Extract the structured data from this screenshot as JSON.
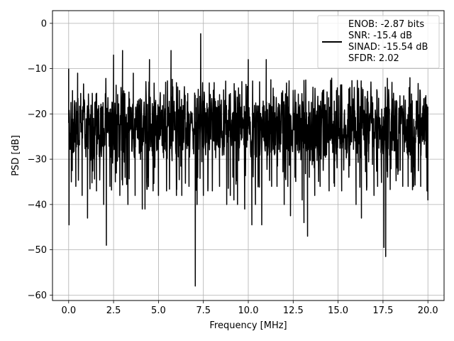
{
  "chart_data": {
    "type": "line",
    "xlabel": "Frequency [MHz]",
    "ylabel": "PSD [dB]",
    "xlim": [
      -0.9,
      20.9
    ],
    "ylim": [
      -61.2,
      2.8
    ],
    "x_ticks": [
      0,
      2.5,
      5,
      7.5,
      10,
      12.5,
      15,
      17.5,
      20
    ],
    "x_tick_labels": [
      "0.0",
      "2.5",
      "5.0",
      "7.5",
      "10.0",
      "12.5",
      "15.0",
      "17.5",
      "20.0"
    ],
    "y_ticks": [
      0,
      -10,
      -20,
      -30,
      -40,
      -50,
      -60
    ],
    "y_tick_labels": [
      "0",
      "−10",
      "−20",
      "−30",
      "−40",
      "−50",
      "−60"
    ],
    "grid": true,
    "legend_placement": "top-right",
    "line_color": "#000000",
    "series": [
      {
        "legend_lines": [
          "ENOB: -2.87 bits",
          "SNR: -15.4 dB",
          "SINAD: -15.54 dB",
          "SFDR: 2.02"
        ],
        "x_range": [
          0,
          20
        ],
        "baseline_db": -23,
        "noise_spread_db": 6,
        "peaks": [
          {
            "x": 0.0,
            "y": -10
          },
          {
            "x": 0.02,
            "y": -44.5
          },
          {
            "x": 0.15,
            "y": -35
          },
          {
            "x": 0.4,
            "y": -36
          },
          {
            "x": 0.5,
            "y": -11
          },
          {
            "x": 0.75,
            "y": -38
          },
          {
            "x": 1.05,
            "y": -43
          },
          {
            "x": 1.3,
            "y": -32
          },
          {
            "x": 1.55,
            "y": -37
          },
          {
            "x": 1.95,
            "y": -40
          },
          {
            "x": 2.1,
            "y": -49
          },
          {
            "x": 2.3,
            "y": -36
          },
          {
            "x": 2.5,
            "y": -7
          },
          {
            "x": 2.6,
            "y": -35
          },
          {
            "x": 2.85,
            "y": -38
          },
          {
            "x": 3.0,
            "y": -6
          },
          {
            "x": 3.3,
            "y": -40
          },
          {
            "x": 3.6,
            "y": -11
          },
          {
            "x": 3.7,
            "y": -38
          },
          {
            "x": 4.1,
            "y": -41
          },
          {
            "x": 4.25,
            "y": -41
          },
          {
            "x": 4.4,
            "y": -34
          },
          {
            "x": 4.5,
            "y": -8
          },
          {
            "x": 4.7,
            "y": -37
          },
          {
            "x": 5.0,
            "y": -38
          },
          {
            "x": 5.45,
            "y": -37
          },
          {
            "x": 5.7,
            "y": -6
          },
          {
            "x": 6.0,
            "y": -38
          },
          {
            "x": 6.3,
            "y": -38
          },
          {
            "x": 6.7,
            "y": -36
          },
          {
            "x": 7.05,
            "y": -58
          },
          {
            "x": 7.15,
            "y": -40
          },
          {
            "x": 7.35,
            "y": -2.3
          },
          {
            "x": 7.5,
            "y": -38
          },
          {
            "x": 7.75,
            "y": -37
          },
          {
            "x": 8.0,
            "y": -37
          },
          {
            "x": 8.4,
            "y": -36
          },
          {
            "x": 8.8,
            "y": -40
          },
          {
            "x": 9.0,
            "y": -38
          },
          {
            "x": 9.2,
            "y": -39
          },
          {
            "x": 9.4,
            "y": -40
          },
          {
            "x": 9.8,
            "y": -41
          },
          {
            "x": 10.0,
            "y": -8
          },
          {
            "x": 10.2,
            "y": -44.5
          },
          {
            "x": 10.4,
            "y": -40
          },
          {
            "x": 10.75,
            "y": -44.5
          },
          {
            "x": 11.0,
            "y": -8
          },
          {
            "x": 11.3,
            "y": -36
          },
          {
            "x": 11.6,
            "y": -36
          },
          {
            "x": 12.0,
            "y": -40
          },
          {
            "x": 12.2,
            "y": -36
          },
          {
            "x": 12.35,
            "y": -42.5
          },
          {
            "x": 12.6,
            "y": -34
          },
          {
            "x": 13.0,
            "y": -39
          },
          {
            "x": 13.1,
            "y": -44
          },
          {
            "x": 13.3,
            "y": -47
          },
          {
            "x": 13.4,
            "y": -34
          },
          {
            "x": 13.7,
            "y": -38
          },
          {
            "x": 14.0,
            "y": -36
          },
          {
            "x": 14.5,
            "y": -37
          },
          {
            "x": 14.8,
            "y": -36
          },
          {
            "x": 15.2,
            "y": -37
          },
          {
            "x": 15.6,
            "y": -34
          },
          {
            "x": 16.0,
            "y": -40
          },
          {
            "x": 16.3,
            "y": -43
          },
          {
            "x": 16.6,
            "y": -36
          },
          {
            "x": 17.0,
            "y": -38
          },
          {
            "x": 17.2,
            "y": -36
          },
          {
            "x": 17.55,
            "y": -49.5
          },
          {
            "x": 17.65,
            "y": -51.5
          },
          {
            "x": 17.9,
            "y": -36
          },
          {
            "x": 18.3,
            "y": -32
          },
          {
            "x": 18.6,
            "y": -36
          },
          {
            "x": 18.9,
            "y": -36
          },
          {
            "x": 19.2,
            "y": -36
          },
          {
            "x": 19.6,
            "y": -36
          },
          {
            "x": 19.95,
            "y": -37
          },
          {
            "x": 20.0,
            "y": -39
          }
        ]
      }
    ]
  }
}
